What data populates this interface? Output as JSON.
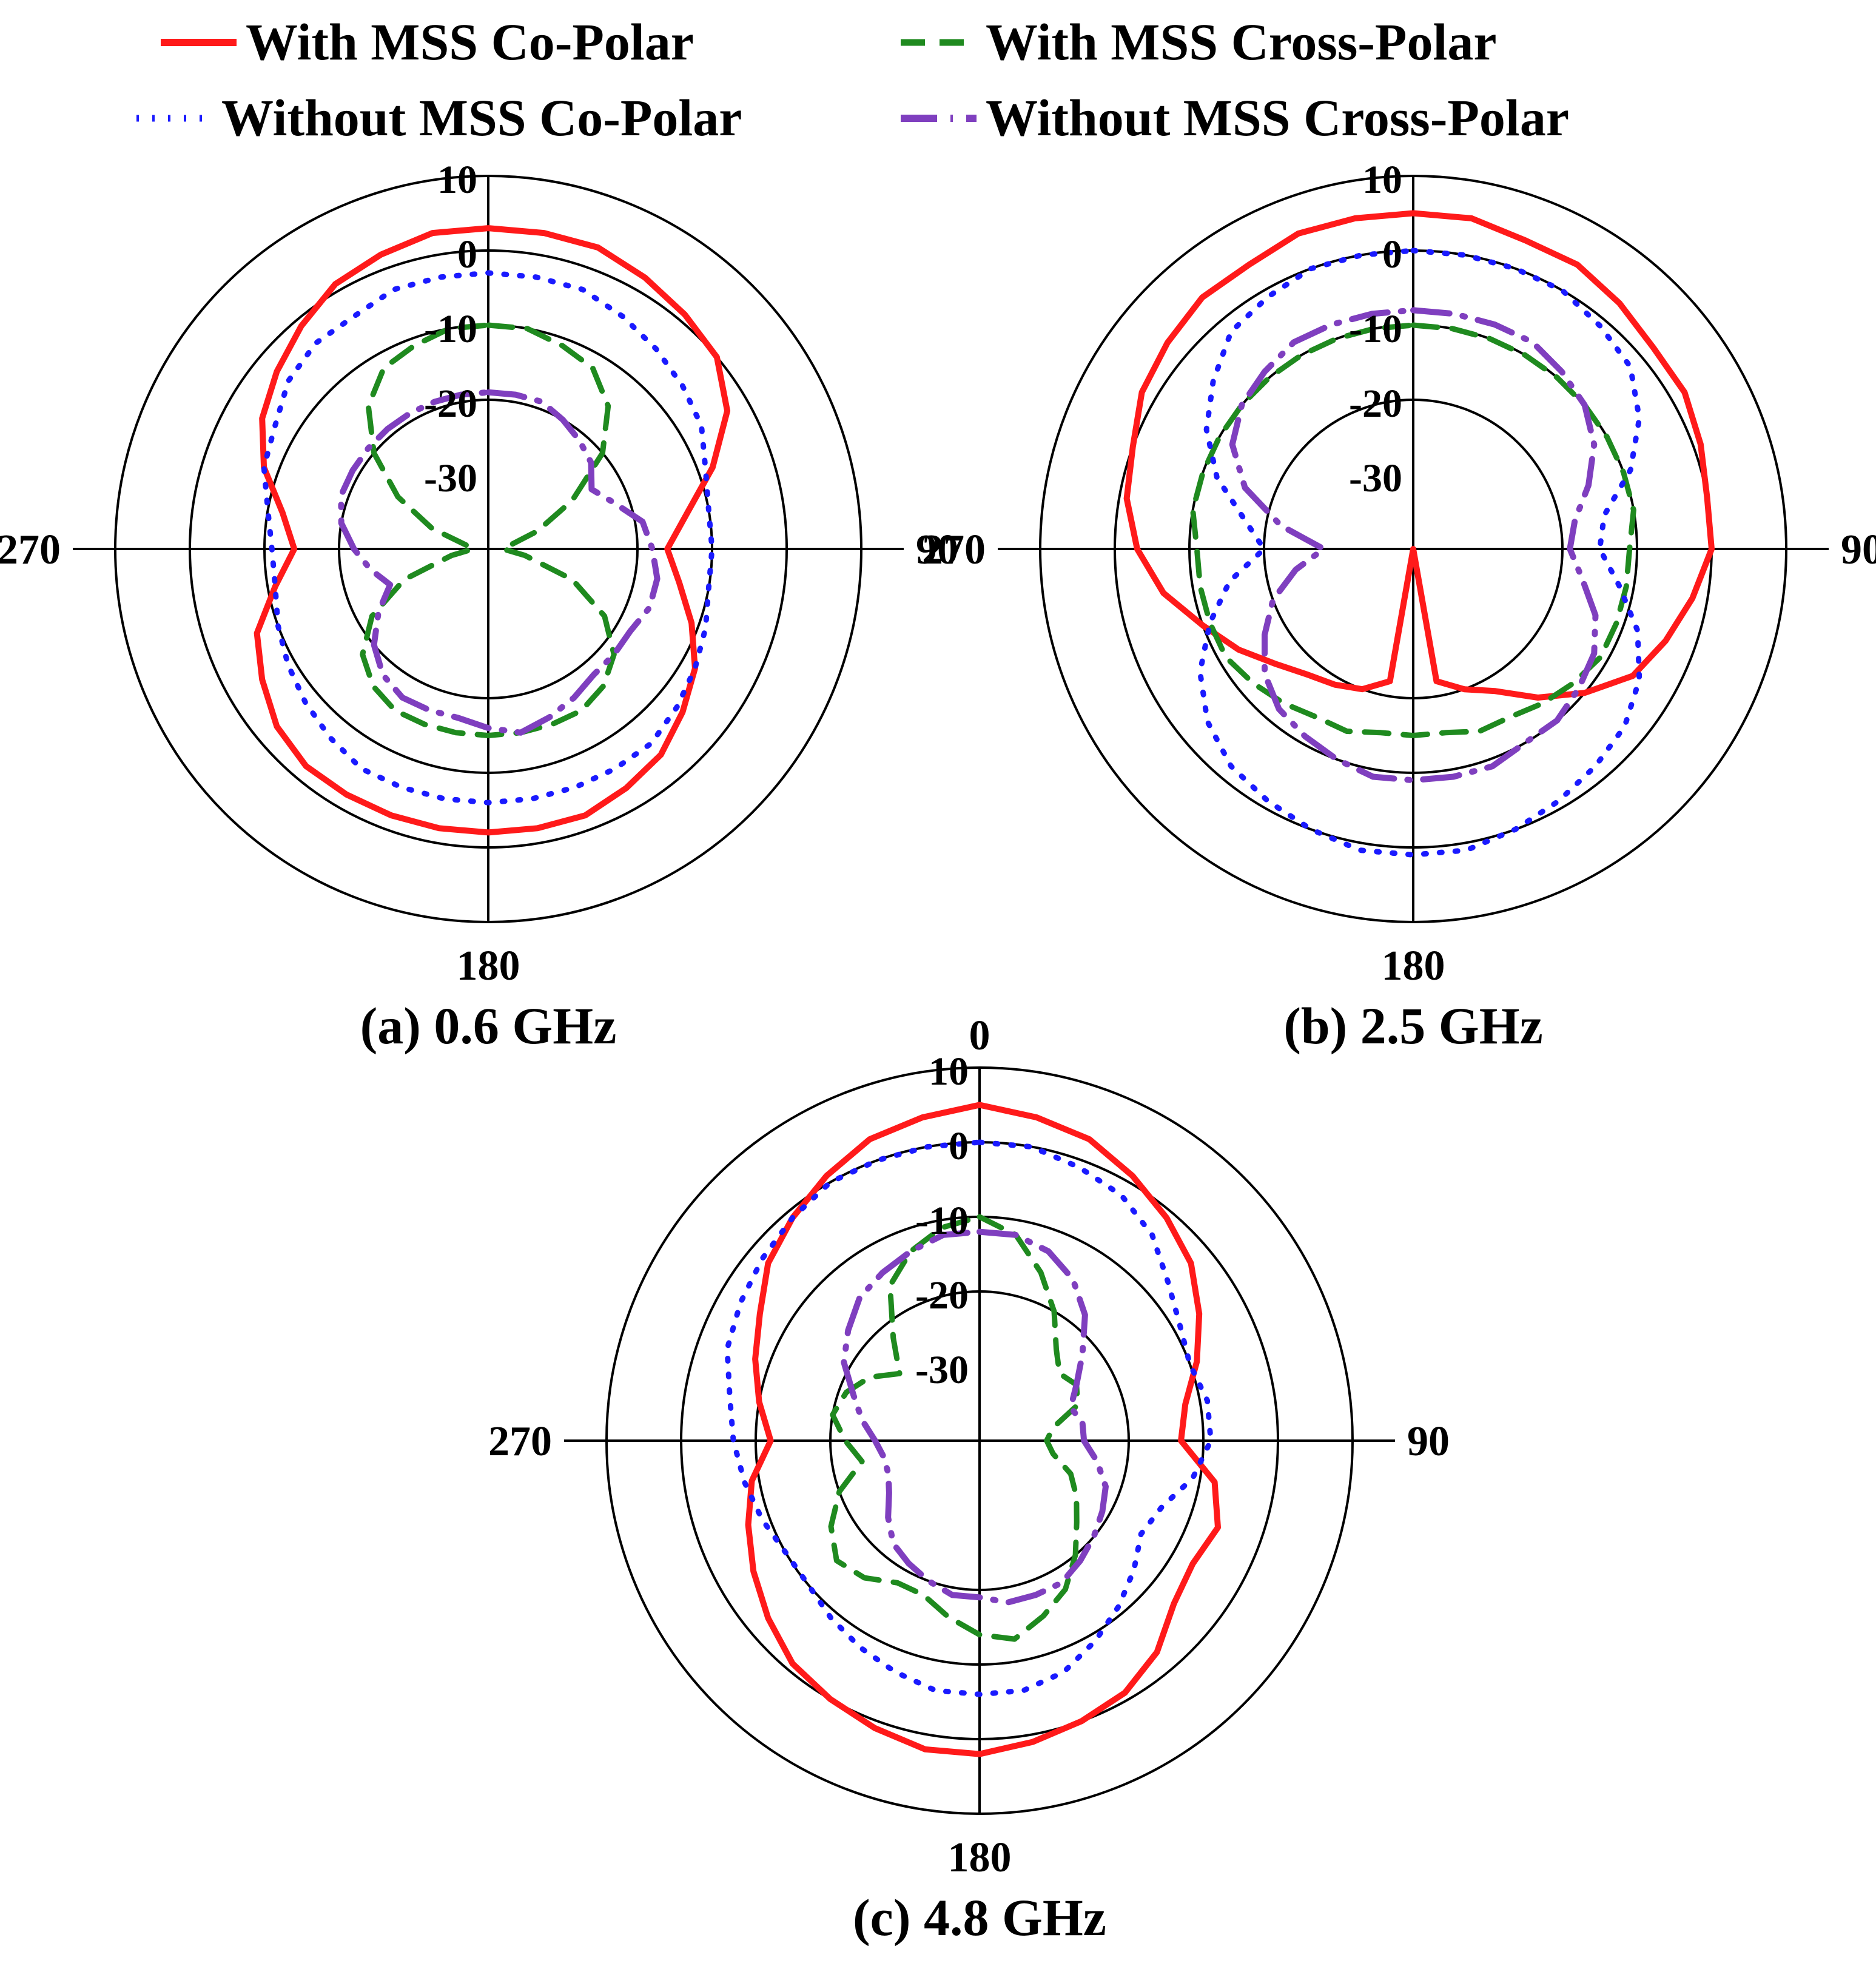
{
  "legend": [
    {
      "label": "With MSS Co-Polar",
      "color": "#ff1a1a",
      "dash": "solid"
    },
    {
      "label": "With MSS Cross-Polar",
      "color": "#1f8a1f",
      "dash": "dashed"
    },
    {
      "label": "Without MSS Co-Polar",
      "color": "#1a1aff",
      "dash": "dotted"
    },
    {
      "label": "Without MSS Cross-Polar",
      "color": "#7f3fbf",
      "dash": "dash-dot"
    }
  ],
  "chart_data": [
    {
      "type": "polar-line",
      "caption": "(a) 0.6 GHz",
      "r_ticks": [
        "10",
        "0",
        "-10",
        "-20",
        "-30"
      ],
      "r_range": [
        -40,
        10
      ],
      "angle_labels": {
        "0": "",
        "90": "90",
        "180": "180",
        "270": "270"
      },
      "grid": true,
      "theta_step_deg": 10,
      "series": [
        {
          "name": "With MSS Co-Polar",
          "theta_deg": [
            0,
            10,
            20,
            30,
            40,
            50,
            60,
            70,
            80,
            90,
            100,
            110,
            120,
            130,
            140,
            150,
            160,
            170,
            180,
            190,
            200,
            210,
            220,
            230,
            240,
            250,
            260,
            270,
            280,
            290,
            300,
            310,
            320,
            330,
            340,
            350
          ],
          "values": [
            3,
            3,
            3,
            2,
            1,
            0,
            -3,
            -8,
            -13,
            -16,
            -14,
            -11,
            -8,
            -6,
            -4,
            -3,
            -2,
            -2,
            -2,
            -2,
            -2,
            -2,
            -2,
            -3,
            -5,
            -7,
            -11,
            -14,
            -12,
            -8,
            -5,
            -3,
            -1,
            1,
            2,
            3
          ]
        },
        {
          "name": "With MSS Cross-Polar",
          "theta_deg": [
            0,
            10,
            20,
            30,
            40,
            50,
            60,
            70,
            80,
            90,
            100,
            110,
            120,
            130,
            140,
            150,
            160,
            170,
            180,
            190,
            200,
            210,
            220,
            230,
            240,
            250,
            260,
            270,
            280,
            290,
            300,
            310,
            320,
            330,
            340,
            350
          ],
          "values": [
            -10,
            -10,
            -11,
            -12,
            -15,
            -20,
            -27,
            -33,
            -37,
            -38,
            -35,
            -28,
            -22,
            -18,
            -16,
            -15,
            -15,
            -15,
            -15,
            -15,
            -15,
            -15,
            -16,
            -18,
            -22,
            -28,
            -35,
            -38,
            -37,
            -32,
            -26,
            -20,
            -15,
            -12,
            -11,
            -10
          ]
        },
        {
          "name": "Without MSS Co-Polar",
          "theta_deg": [
            0,
            10,
            20,
            30,
            40,
            50,
            60,
            70,
            80,
            90,
            100,
            110,
            120,
            130,
            140,
            150,
            160,
            170,
            180,
            190,
            200,
            210,
            220,
            230,
            240,
            250,
            260,
            270,
            280,
            290,
            300,
            310,
            320,
            330,
            340,
            350
          ],
          "values": [
            -3,
            -3,
            -3,
            -4,
            -5,
            -6,
            -7,
            -9,
            -10,
            -10,
            -10,
            -9,
            -8,
            -7,
            -6,
            -6,
            -6,
            -6,
            -6,
            -6,
            -6,
            -6,
            -7,
            -8,
            -9,
            -10,
            -11,
            -11,
            -10,
            -8,
            -7,
            -5,
            -4,
            -4,
            -3,
            -3
          ]
        },
        {
          "name": "Without MSS Cross-Polar",
          "theta_deg": [
            0,
            10,
            20,
            30,
            40,
            50,
            60,
            70,
            80,
            90,
            100,
            110,
            120,
            130,
            140,
            150,
            160,
            170,
            180,
            190,
            200,
            210,
            220,
            230,
            240,
            250,
            260,
            270,
            280,
            290,
            300,
            310,
            320,
            330,
            340,
            350
          ],
          "values": [
            -19,
            -19,
            -19,
            -20,
            -21,
            -22,
            -24,
            -22,
            -19,
            -18,
            -17,
            -17,
            -18,
            -18,
            -18,
            -17,
            -16,
            -15,
            -16,
            -17,
            -17,
            -17,
            -18,
            -20,
            -23,
            -26,
            -24,
            -22,
            -20,
            -19,
            -19,
            -19,
            -19,
            -19,
            -19,
            -19
          ]
        }
      ]
    },
    {
      "type": "polar-line",
      "caption": "(b) 2.5 GHz",
      "r_ticks": [
        "10",
        "0",
        "-10",
        "-20",
        "-30"
      ],
      "r_range": [
        -40,
        10
      ],
      "angle_labels": {
        "0": "",
        "90": "90",
        "180": "180",
        "270": "270"
      },
      "grid": true,
      "theta_step_deg": 10,
      "series": [
        {
          "name": "With MSS Co-Polar",
          "theta_deg": [
            0,
            10,
            20,
            30,
            40,
            50,
            60,
            70,
            80,
            90,
            100,
            110,
            120,
            130,
            140,
            150,
            160,
            170,
            180,
            190,
            200,
            210,
            220,
            230,
            240,
            250,
            260,
            270,
            280,
            290,
            300,
            310,
            320,
            330,
            340,
            350
          ],
          "values": [
            5,
            5,
            4,
            4,
            3,
            2,
            2,
            1,
            0,
            0,
            -2,
            -4,
            -6,
            -10,
            -14,
            -18,
            -20,
            -22,
            -40,
            -22,
            -20,
            -19,
            -18,
            -16,
            -13,
            -10,
            -6,
            -3,
            -1,
            0,
            2,
            3,
            4,
            4,
            5,
            5
          ]
        },
        {
          "name": "With MSS Cross-Polar",
          "theta_deg": [
            0,
            10,
            20,
            30,
            40,
            50,
            60,
            70,
            80,
            90,
            100,
            110,
            120,
            130,
            140,
            150,
            160,
            170,
            180,
            190,
            200,
            210,
            220,
            230,
            240,
            250,
            260,
            270,
            280,
            290,
            300,
            310,
            320,
            330,
            340,
            350
          ],
          "values": [
            -10,
            -10,
            -10,
            -10,
            -10,
            -10,
            -10,
            -10,
            -10,
            -11,
            -11,
            -11,
            -11,
            -12,
            -13,
            -14,
            -14,
            -15,
            -15,
            -15,
            -14,
            -14,
            -13,
            -12,
            -11,
            -11,
            -11,
            -11,
            -10,
            -10,
            -10,
            -10,
            -10,
            -10,
            -10,
            -10
          ]
        },
        {
          "name": "Without MSS Co-Polar",
          "theta_deg": [
            0,
            10,
            20,
            30,
            40,
            50,
            60,
            70,
            80,
            90,
            100,
            110,
            120,
            130,
            140,
            150,
            160,
            170,
            180,
            190,
            200,
            210,
            220,
            230,
            240,
            250,
            260,
            270,
            280,
            290,
            300,
            310,
            320,
            330,
            340,
            350
          ],
          "values": [
            0,
            0,
            0,
            0,
            -1,
            -2,
            -5,
            -9,
            -14,
            -15,
            -12,
            -8,
            -5,
            -3,
            -2,
            -1,
            0,
            1,
            1,
            1,
            0,
            -1,
            -2,
            -4,
            -7,
            -11,
            -15,
            -20,
            -17,
            -12,
            -8,
            -5,
            -2,
            -1,
            0,
            0
          ]
        },
        {
          "name": "Without MSS Cross-Polar",
          "theta_deg": [
            0,
            10,
            20,
            30,
            40,
            50,
            60,
            70,
            80,
            90,
            100,
            110,
            120,
            130,
            140,
            150,
            160,
            170,
            180,
            190,
            200,
            210,
            220,
            230,
            240,
            250,
            260,
            270,
            280,
            290,
            300,
            310,
            320,
            330,
            340,
            350
          ],
          "values": [
            -8,
            -8,
            -8,
            -8,
            -9,
            -10,
            -12,
            -15,
            -18,
            -19,
            -17,
            -14,
            -12,
            -11,
            -10,
            -10,
            -9,
            -9,
            -9,
            -9,
            -10,
            -11,
            -12,
            -14,
            -17,
            -20,
            -24,
            -28,
            -22,
            -16,
            -12,
            -10,
            -9,
            -8,
            -8,
            -8
          ]
        }
      ]
    },
    {
      "type": "polar-line",
      "caption": "(c) 4.8 GHz",
      "r_ticks": [
        "10",
        "0",
        "-10",
        "-20",
        "-30"
      ],
      "r_range": [
        -40,
        10
      ],
      "angle_labels": {
        "0": "0",
        "90": "90",
        "180": "180",
        "270": "270"
      },
      "grid": true,
      "theta_step_deg": 10,
      "series": [
        {
          "name": "With MSS Co-Polar",
          "theta_deg": [
            0,
            10,
            20,
            30,
            40,
            50,
            60,
            70,
            80,
            90,
            100,
            110,
            120,
            130,
            140,
            150,
            160,
            170,
            180,
            190,
            200,
            210,
            220,
            230,
            240,
            250,
            260,
            270,
            280,
            290,
            300,
            310,
            320,
            330,
            340,
            350
          ],
          "values": [
            5,
            4,
            3,
            1,
            -1,
            -3,
            -6,
            -9,
            -12,
            -13,
            -8,
            -6,
            -7,
            -6,
            -3,
            -1,
            0,
            1,
            2,
            2,
            1,
            0,
            -1,
            -3,
            -5,
            -7,
            -9,
            -12,
            -10,
            -8,
            -6,
            -3,
            -1,
            1,
            3,
            4
          ]
        },
        {
          "name": "With MSS Cross-Polar",
          "theta_deg": [
            0,
            10,
            20,
            30,
            40,
            50,
            60,
            70,
            80,
            90,
            100,
            110,
            120,
            130,
            140,
            150,
            160,
            170,
            180,
            190,
            200,
            210,
            220,
            230,
            240,
            250,
            260,
            270,
            280,
            290,
            300,
            310,
            320,
            330,
            340,
            350
          ],
          "values": [
            -10,
            -12,
            -16,
            -20,
            -24,
            -26,
            -25,
            -26,
            -30,
            -31,
            -30,
            -27,
            -25,
            -23,
            -20,
            -17,
            -15,
            -13,
            -14,
            -16,
            -18,
            -18,
            -16,
            -15,
            -17,
            -20,
            -24,
            -22,
            -20,
            -21,
            -23,
            -26,
            -22,
            -16,
            -13,
            -11
          ]
        },
        {
          "name": "Without MSS Co-Polar",
          "theta_deg": [
            0,
            10,
            20,
            30,
            40,
            50,
            60,
            70,
            80,
            90,
            100,
            110,
            120,
            130,
            140,
            150,
            160,
            170,
            180,
            190,
            200,
            210,
            220,
            230,
            240,
            250,
            260,
            270,
            280,
            290,
            300,
            310,
            320,
            330,
            340,
            350
          ],
          "values": [
            0,
            0,
            -1,
            -2,
            -4,
            -7,
            -9,
            -10,
            -9,
            -9,
            -11,
            -14,
            -15,
            -13,
            -11,
            -9,
            -7,
            -6,
            -6,
            -6,
            -7,
            -8,
            -9,
            -10,
            -10,
            -9,
            -8,
            -7,
            -6,
            -4,
            -3,
            -2,
            -1,
            0,
            0,
            0
          ]
        },
        {
          "name": "Without MSS Cross-Polar",
          "theta_deg": [
            0,
            10,
            20,
            30,
            40,
            50,
            60,
            70,
            80,
            90,
            100,
            110,
            120,
            130,
            140,
            150,
            160,
            170,
            180,
            190,
            200,
            210,
            220,
            230,
            240,
            250,
            260,
            270,
            280,
            290,
            300,
            310,
            320,
            330,
            340,
            350
          ],
          "values": [
            -12,
            -12,
            -13,
            -15,
            -18,
            -22,
            -25,
            -27,
            -26,
            -26,
            -24,
            -22,
            -21,
            -20,
            -19,
            -18,
            -18,
            -18,
            -19,
            -19,
            -20,
            -21,
            -22,
            -24,
            -26,
            -27,
            -27,
            -26,
            -24,
            -22,
            -19,
            -17,
            -15,
            -14,
            -13,
            -12
          ]
        }
      ]
    }
  ]
}
